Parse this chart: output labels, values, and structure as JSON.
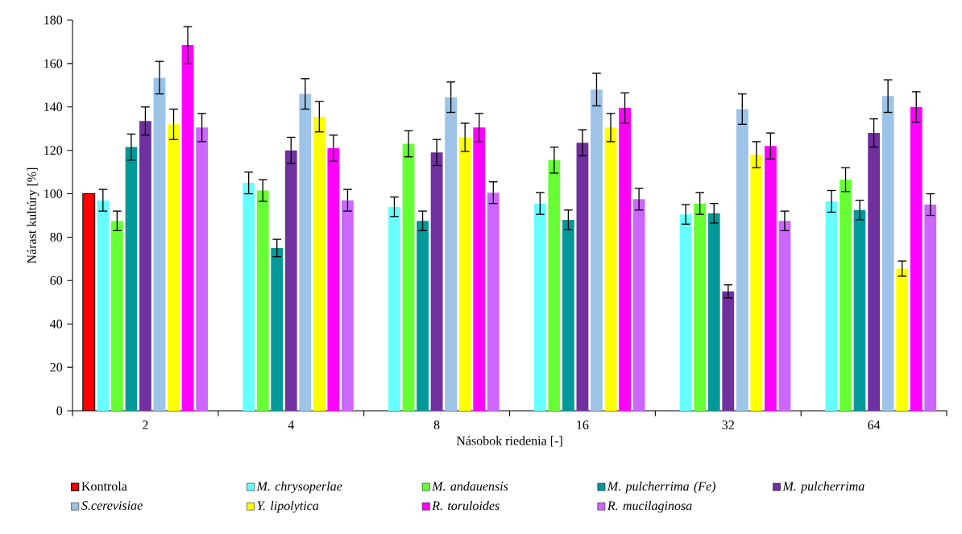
{
  "chart_data": {
    "type": "bar",
    "xlabel": "Násobok riedenia [-]",
    "ylabel": "Nárast kultúry [%]",
    "categories": [
      "2",
      "4",
      "8",
      "16",
      "32",
      "64"
    ],
    "ylim": [
      0,
      180
    ],
    "yticks": [
      0,
      20,
      40,
      60,
      80,
      100,
      120,
      140,
      160,
      180
    ],
    "grid": false,
    "legend": "bottom",
    "series": [
      {
        "name": "Kontrola",
        "color": "#ff0000",
        "values": [
          100,
          null,
          null,
          null,
          null,
          null
        ]
      },
      {
        "name": "*M. chrysoperlae*",
        "color": "#66ffff",
        "values": [
          97,
          105,
          94,
          95.5,
          90.5,
          96.5
        ],
        "errors": [
          5,
          5,
          4.5,
          5,
          4.5,
          5
        ]
      },
      {
        "name": "*M. andauensis*",
        "color": "#66ff33",
        "values": [
          87.5,
          101.5,
          123,
          115.5,
          95.5,
          106.5
        ],
        "errors": [
          4.5,
          5,
          6,
          6,
          5,
          5.5
        ]
      },
      {
        "name": "*M. pulcherrima (Fe)*",
        "color": "#009999",
        "values": [
          121.5,
          75,
          87.5,
          88,
          91,
          92.5
        ],
        "errors": [
          6,
          4,
          4.5,
          4.5,
          4.5,
          4.5
        ]
      },
      {
        "name": "*M. pulcherrima*",
        "color": "#7030a0",
        "values": [
          133.5,
          120,
          119,
          123.5,
          55,
          128
        ],
        "errors": [
          6.5,
          6,
          6,
          6,
          3,
          6.5
        ]
      },
      {
        "name": "*S.cerevisiae*",
        "color": "#9dc3e6",
        "values": [
          153.5,
          146,
          144.5,
          148,
          139,
          145
        ],
        "errors": [
          7.5,
          7,
          7,
          7.5,
          7,
          7.5
        ]
      },
      {
        "name": "*Y. lipolytica*",
        "color": "#ffff00",
        "values": [
          132,
          135.5,
          126,
          130.5,
          118,
          65.5
        ],
        "errors": [
          7,
          7,
          6.5,
          6.5,
          6,
          3.5
        ]
      },
      {
        "name": "*R. toruloides*",
        "color": "#ff00ff",
        "values": [
          168.5,
          121,
          130.5,
          139.5,
          122,
          140
        ],
        "errors": [
          8.5,
          6,
          6.5,
          7,
          6,
          7
        ]
      },
      {
        "name": "*R. mucilaginosa*",
        "color": "#cc66ff",
        "values": [
          130.5,
          97,
          100.5,
          97.5,
          87.5,
          95
        ],
        "errors": [
          6.5,
          5,
          5,
          5,
          4.5,
          5
        ]
      }
    ]
  }
}
